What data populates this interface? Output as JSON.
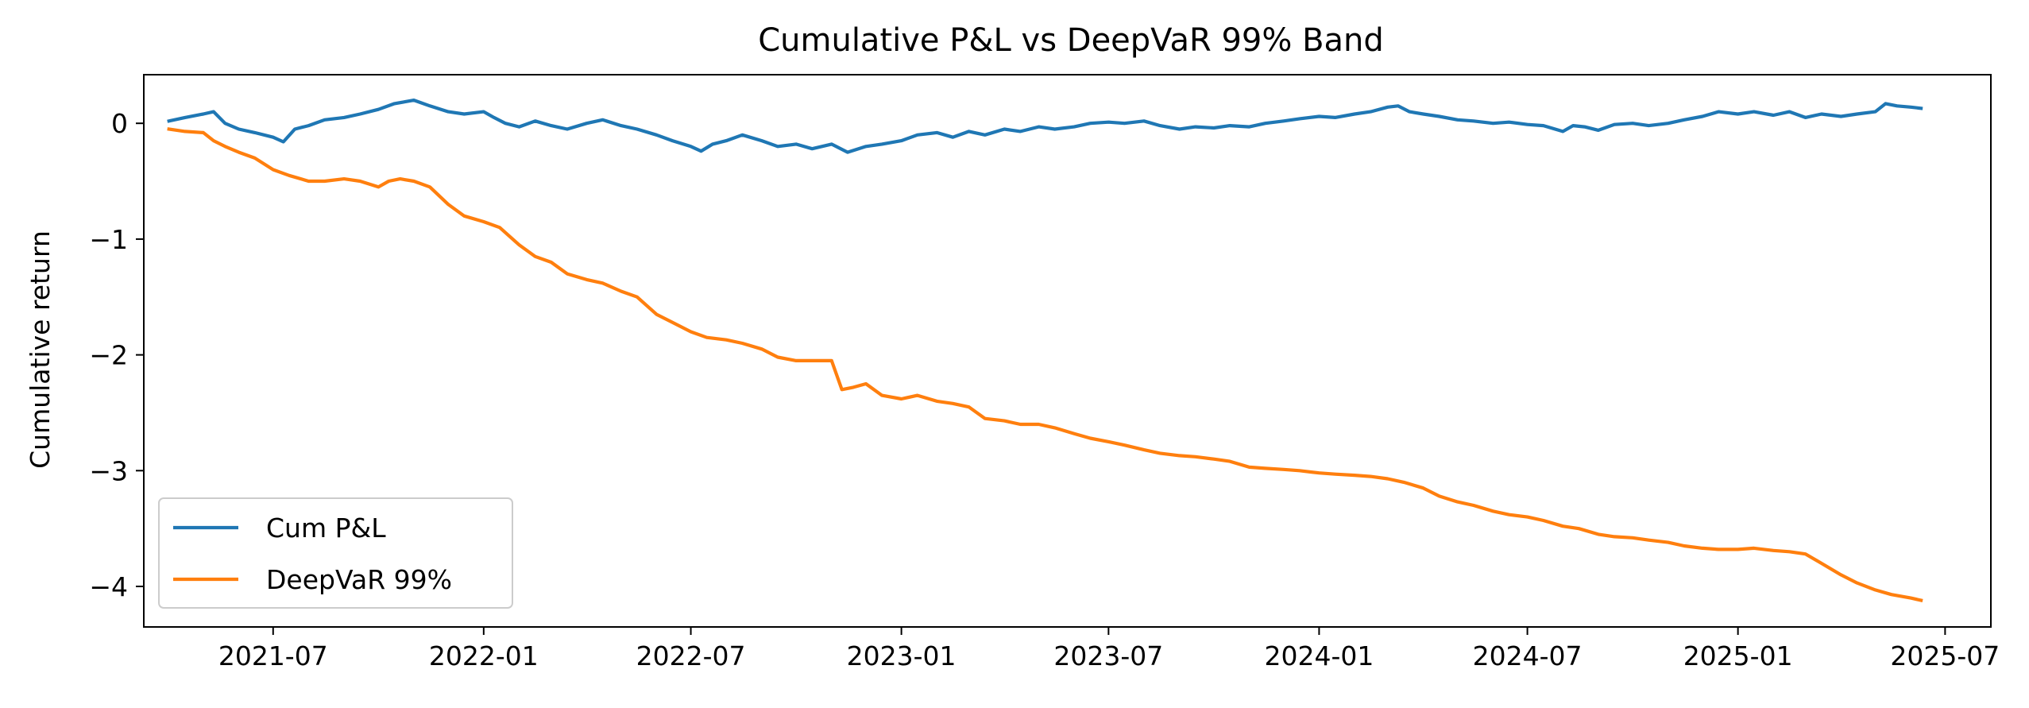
{
  "chart_data": {
    "type": "line",
    "title": "Cumulative P&L vs DeepVaR 99% Band",
    "xlabel": "",
    "ylabel": "Cumulative return",
    "x_type": "date",
    "xlim": [
      "2021-03-10",
      "2025-08-10"
    ],
    "ylim": [
      -4.35,
      0.42
    ],
    "x_ticks": [
      "2021-07",
      "2022-01",
      "2022-07",
      "2023-01",
      "2023-07",
      "2024-01",
      "2024-07",
      "2025-01",
      "2025-07"
    ],
    "y_ticks": [
      {
        "value": 0,
        "label": "0"
      },
      {
        "value": -1,
        "label": "−1"
      },
      {
        "value": -2,
        "label": "−2"
      },
      {
        "value": -3,
        "label": "−3"
      },
      {
        "value": -4,
        "label": "−4"
      }
    ],
    "grid": false,
    "legend_position": "lower-left",
    "series": [
      {
        "name": "Cum P&L",
        "color": "#1f77b4",
        "points": [
          [
            "2021-04-01",
            0.02
          ],
          [
            "2021-04-15",
            0.05
          ],
          [
            "2021-05-01",
            0.08
          ],
          [
            "2021-05-10",
            0.1
          ],
          [
            "2021-05-20",
            0.0
          ],
          [
            "2021-06-01",
            -0.05
          ],
          [
            "2021-06-15",
            -0.08
          ],
          [
            "2021-07-01",
            -0.12
          ],
          [
            "2021-07-10",
            -0.16
          ],
          [
            "2021-07-20",
            -0.05
          ],
          [
            "2021-08-01",
            -0.02
          ],
          [
            "2021-08-15",
            0.03
          ],
          [
            "2021-09-01",
            0.05
          ],
          [
            "2021-09-15",
            0.08
          ],
          [
            "2021-10-01",
            0.12
          ],
          [
            "2021-10-15",
            0.17
          ],
          [
            "2021-11-01",
            0.2
          ],
          [
            "2021-11-15",
            0.15
          ],
          [
            "2021-12-01",
            0.1
          ],
          [
            "2021-12-15",
            0.08
          ],
          [
            "2022-01-01",
            0.1
          ],
          [
            "2022-01-10",
            0.05
          ],
          [
            "2022-01-20",
            0.0
          ],
          [
            "2022-02-01",
            -0.03
          ],
          [
            "2022-02-15",
            0.02
          ],
          [
            "2022-03-01",
            -0.02
          ],
          [
            "2022-03-15",
            -0.05
          ],
          [
            "2022-04-01",
            0.0
          ],
          [
            "2022-04-15",
            0.03
          ],
          [
            "2022-05-01",
            -0.02
          ],
          [
            "2022-05-15",
            -0.05
          ],
          [
            "2022-06-01",
            -0.1
          ],
          [
            "2022-06-15",
            -0.15
          ],
          [
            "2022-07-01",
            -0.2
          ],
          [
            "2022-07-10",
            -0.24
          ],
          [
            "2022-07-20",
            -0.18
          ],
          [
            "2022-08-01",
            -0.15
          ],
          [
            "2022-08-15",
            -0.1
          ],
          [
            "2022-09-01",
            -0.15
          ],
          [
            "2022-09-15",
            -0.2
          ],
          [
            "2022-10-01",
            -0.18
          ],
          [
            "2022-10-15",
            -0.22
          ],
          [
            "2022-11-01",
            -0.18
          ],
          [
            "2022-11-15",
            -0.25
          ],
          [
            "2022-12-01",
            -0.2
          ],
          [
            "2022-12-15",
            -0.18
          ],
          [
            "2023-01-01",
            -0.15
          ],
          [
            "2023-01-15",
            -0.1
          ],
          [
            "2023-02-01",
            -0.08
          ],
          [
            "2023-02-15",
            -0.12
          ],
          [
            "2023-03-01",
            -0.07
          ],
          [
            "2023-03-15",
            -0.1
          ],
          [
            "2023-04-01",
            -0.05
          ],
          [
            "2023-04-15",
            -0.07
          ],
          [
            "2023-05-01",
            -0.03
          ],
          [
            "2023-05-15",
            -0.05
          ],
          [
            "2023-06-01",
            -0.03
          ],
          [
            "2023-06-15",
            0.0
          ],
          [
            "2023-07-01",
            0.01
          ],
          [
            "2023-07-15",
            0.0
          ],
          [
            "2023-08-01",
            0.02
          ],
          [
            "2023-08-15",
            -0.02
          ],
          [
            "2023-09-01",
            -0.05
          ],
          [
            "2023-09-15",
            -0.03
          ],
          [
            "2023-10-01",
            -0.04
          ],
          [
            "2023-10-15",
            -0.02
          ],
          [
            "2023-11-01",
            -0.03
          ],
          [
            "2023-11-15",
            0.0
          ],
          [
            "2023-12-01",
            0.02
          ],
          [
            "2023-12-15",
            0.04
          ],
          [
            "2024-01-01",
            0.06
          ],
          [
            "2024-01-15",
            0.05
          ],
          [
            "2024-02-01",
            0.08
          ],
          [
            "2024-02-15",
            0.1
          ],
          [
            "2024-03-01",
            0.14
          ],
          [
            "2024-03-10",
            0.15
          ],
          [
            "2024-03-20",
            0.1
          ],
          [
            "2024-04-01",
            0.08
          ],
          [
            "2024-04-15",
            0.06
          ],
          [
            "2024-05-01",
            0.03
          ],
          [
            "2024-05-15",
            0.02
          ],
          [
            "2024-06-01",
            0.0
          ],
          [
            "2024-06-15",
            0.01
          ],
          [
            "2024-07-01",
            -0.01
          ],
          [
            "2024-07-15",
            -0.02
          ],
          [
            "2024-08-01",
            -0.07
          ],
          [
            "2024-08-10",
            -0.02
          ],
          [
            "2024-08-20",
            -0.03
          ],
          [
            "2024-09-01",
            -0.06
          ],
          [
            "2024-09-15",
            -0.01
          ],
          [
            "2024-10-01",
            0.0
          ],
          [
            "2024-10-15",
            -0.02
          ],
          [
            "2024-11-01",
            0.0
          ],
          [
            "2024-11-15",
            0.03
          ],
          [
            "2024-12-01",
            0.06
          ],
          [
            "2024-12-15",
            0.1
          ],
          [
            "2025-01-01",
            0.08
          ],
          [
            "2025-01-15",
            0.1
          ],
          [
            "2025-02-01",
            0.07
          ],
          [
            "2025-02-15",
            0.1
          ],
          [
            "2025-03-01",
            0.05
          ],
          [
            "2025-03-15",
            0.08
          ],
          [
            "2025-04-01",
            0.06
          ],
          [
            "2025-04-15",
            0.08
          ],
          [
            "2025-05-01",
            0.1
          ],
          [
            "2025-05-10",
            0.17
          ],
          [
            "2025-05-20",
            0.15
          ],
          [
            "2025-06-01",
            0.14
          ],
          [
            "2025-06-10",
            0.13
          ]
        ]
      },
      {
        "name": "DeepVaR 99%",
        "color": "#ff7f0e",
        "points": [
          [
            "2021-04-01",
            -0.05
          ],
          [
            "2021-04-15",
            -0.07
          ],
          [
            "2021-05-01",
            -0.08
          ],
          [
            "2021-05-10",
            -0.15
          ],
          [
            "2021-05-20",
            -0.2
          ],
          [
            "2021-06-01",
            -0.25
          ],
          [
            "2021-06-15",
            -0.3
          ],
          [
            "2021-07-01",
            -0.4
          ],
          [
            "2021-07-15",
            -0.45
          ],
          [
            "2021-08-01",
            -0.5
          ],
          [
            "2021-08-15",
            -0.5
          ],
          [
            "2021-09-01",
            -0.48
          ],
          [
            "2021-09-15",
            -0.5
          ],
          [
            "2021-10-01",
            -0.55
          ],
          [
            "2021-10-10",
            -0.5
          ],
          [
            "2021-10-20",
            -0.48
          ],
          [
            "2021-11-01",
            -0.5
          ],
          [
            "2021-11-15",
            -0.55
          ],
          [
            "2021-12-01",
            -0.7
          ],
          [
            "2021-12-15",
            -0.8
          ],
          [
            "2022-01-01",
            -0.85
          ],
          [
            "2022-01-15",
            -0.9
          ],
          [
            "2022-02-01",
            -1.05
          ],
          [
            "2022-02-15",
            -1.15
          ],
          [
            "2022-03-01",
            -1.2
          ],
          [
            "2022-03-15",
            -1.3
          ],
          [
            "2022-04-01",
            -1.35
          ],
          [
            "2022-04-15",
            -1.38
          ],
          [
            "2022-05-01",
            -1.45
          ],
          [
            "2022-05-15",
            -1.5
          ],
          [
            "2022-06-01",
            -1.65
          ],
          [
            "2022-06-15",
            -1.72
          ],
          [
            "2022-07-01",
            -1.8
          ],
          [
            "2022-07-15",
            -1.85
          ],
          [
            "2022-08-01",
            -1.87
          ],
          [
            "2022-08-15",
            -1.9
          ],
          [
            "2022-09-01",
            -1.95
          ],
          [
            "2022-09-15",
            -2.02
          ],
          [
            "2022-10-01",
            -2.05
          ],
          [
            "2022-10-15",
            -2.05
          ],
          [
            "2022-11-01",
            -2.05
          ],
          [
            "2022-11-10",
            -2.3
          ],
          [
            "2022-11-20",
            -2.28
          ],
          [
            "2022-12-01",
            -2.25
          ],
          [
            "2022-12-15",
            -2.35
          ],
          [
            "2023-01-01",
            -2.38
          ],
          [
            "2023-01-15",
            -2.35
          ],
          [
            "2023-02-01",
            -2.4
          ],
          [
            "2023-02-15",
            -2.42
          ],
          [
            "2023-03-01",
            -2.45
          ],
          [
            "2023-03-15",
            -2.55
          ],
          [
            "2023-04-01",
            -2.57
          ],
          [
            "2023-04-15",
            -2.6
          ],
          [
            "2023-05-01",
            -2.6
          ],
          [
            "2023-05-15",
            -2.63
          ],
          [
            "2023-06-01",
            -2.68
          ],
          [
            "2023-06-15",
            -2.72
          ],
          [
            "2023-07-01",
            -2.75
          ],
          [
            "2023-07-15",
            -2.78
          ],
          [
            "2023-08-01",
            -2.82
          ],
          [
            "2023-08-15",
            -2.85
          ],
          [
            "2023-09-01",
            -2.87
          ],
          [
            "2023-09-15",
            -2.88
          ],
          [
            "2023-10-01",
            -2.9
          ],
          [
            "2023-10-15",
            -2.92
          ],
          [
            "2023-11-01",
            -2.97
          ],
          [
            "2023-11-15",
            -2.98
          ],
          [
            "2023-12-01",
            -2.99
          ],
          [
            "2023-12-15",
            -3.0
          ],
          [
            "2024-01-01",
            -3.02
          ],
          [
            "2024-01-15",
            -3.03
          ],
          [
            "2024-02-01",
            -3.04
          ],
          [
            "2024-02-15",
            -3.05
          ],
          [
            "2024-03-01",
            -3.07
          ],
          [
            "2024-03-15",
            -3.1
          ],
          [
            "2024-04-01",
            -3.15
          ],
          [
            "2024-04-15",
            -3.22
          ],
          [
            "2024-05-01",
            -3.27
          ],
          [
            "2024-05-15",
            -3.3
          ],
          [
            "2024-06-01",
            -3.35
          ],
          [
            "2024-06-15",
            -3.38
          ],
          [
            "2024-07-01",
            -3.4
          ],
          [
            "2024-07-15",
            -3.43
          ],
          [
            "2024-08-01",
            -3.48
          ],
          [
            "2024-08-15",
            -3.5
          ],
          [
            "2024-09-01",
            -3.55
          ],
          [
            "2024-09-15",
            -3.57
          ],
          [
            "2024-10-01",
            -3.58
          ],
          [
            "2024-10-15",
            -3.6
          ],
          [
            "2024-11-01",
            -3.62
          ],
          [
            "2024-11-15",
            -3.65
          ],
          [
            "2024-12-01",
            -3.67
          ],
          [
            "2024-12-15",
            -3.68
          ],
          [
            "2025-01-01",
            -3.68
          ],
          [
            "2025-01-15",
            -3.67
          ],
          [
            "2025-02-01",
            -3.69
          ],
          [
            "2025-02-15",
            -3.7
          ],
          [
            "2025-03-01",
            -3.72
          ],
          [
            "2025-03-15",
            -3.8
          ],
          [
            "2025-04-01",
            -3.9
          ],
          [
            "2025-04-15",
            -3.97
          ],
          [
            "2025-05-01",
            -4.03
          ],
          [
            "2025-05-15",
            -4.07
          ],
          [
            "2025-06-01",
            -4.1
          ],
          [
            "2025-06-10",
            -4.12
          ]
        ]
      }
    ]
  }
}
